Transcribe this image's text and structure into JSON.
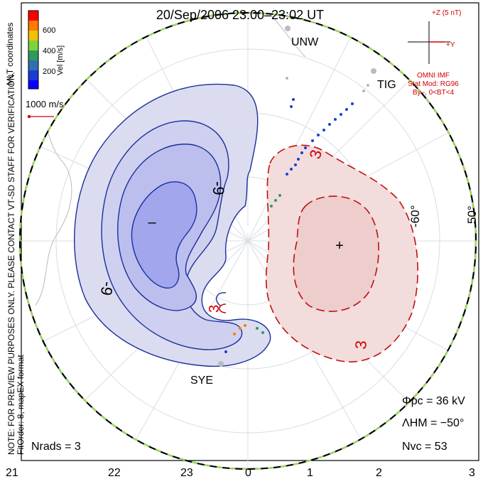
{
  "title": "20/Sep/2006 23:00–23:02 UT",
  "imf": {
    "top": "+Z (5 nT)",
    "right": "+Y",
    "source": "OMNI IMF",
    "model": "Stat Mod: RG96",
    "condition": "By–, 0<BT<4"
  },
  "velocity_scale": {
    "label": "Vel [m/s]",
    "ticks": [
      "600",
      "400",
      "200"
    ],
    "colors": [
      "#ff0000",
      "#ff7a00",
      "#f2c200",
      "#7ed23a",
      "#2e9a5e",
      "#2e6fb0",
      "#1e3ad6",
      "#0a00ff"
    ]
  },
  "coord_label": "MLT coordinates",
  "reference_vector": "1000 m/s",
  "notes": {
    "preview": "NOTE: FOR PREVIEW PURPOSES ONLY. PLEASE CONTACT VT-SD STAFF FOR VERIFICATION.",
    "fit": "FitOrder: 8, mapEX format"
  },
  "stations": {
    "unw": "UNW",
    "tig": "TIG",
    "sye": "SYE"
  },
  "latitude_labels": {
    "lat60": "-60°",
    "lat50": "50°"
  },
  "stats": {
    "phi_pc": "Φpc = 36 kV",
    "lambda_hm": "ΛHM = −50°",
    "n_vc": "Nvc = 53",
    "n_rads": "Nrads = 3"
  },
  "mlt_axis": [
    "21",
    "22",
    "23",
    "0",
    "1",
    "2",
    "3"
  ],
  "chart_data": {
    "type": "polar convection map",
    "title": "20/Sep/2006 23:00–23:02 UT",
    "x_axis_mlt": [
      "21",
      "22",
      "23",
      "0",
      "1",
      "2",
      "3"
    ],
    "latitude_labels": [
      "-60°",
      "50°"
    ],
    "potential_labels": {
      "negative": [
        "-9",
        "-9"
      ],
      "positive": [
        "3",
        "3",
        "3"
      ]
    },
    "potential_extrema": {
      "min": "–",
      "max": "+"
    },
    "cross_polar_cap_potential_kV": 36,
    "heppner_maynard_boundary_deg": -50,
    "n_vectors": 53,
    "n_radars": 3,
    "velocity_colorbar_ticks_ms": [
      600,
      400,
      200
    ],
    "reference_vector_ms": 1000
  }
}
